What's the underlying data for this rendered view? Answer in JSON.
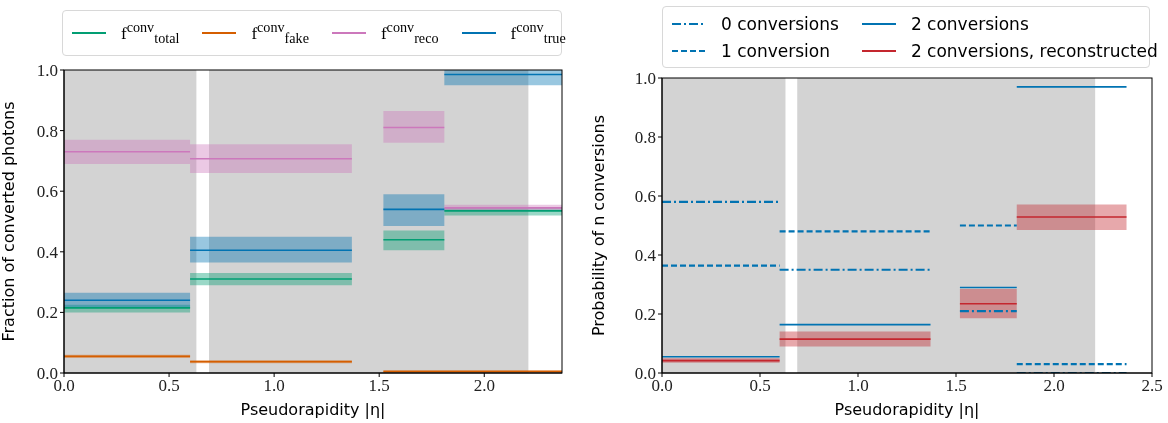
{
  "chart_data": [
    {
      "type": "line",
      "xlabel": "Pseudorapidity |η|",
      "ylabel": "Fraction of converted photons",
      "xlim": [
        0,
        2.37
      ],
      "ylim": [
        0,
        1
      ],
      "xticks": [
        {
          "value": 0,
          "label": "0.0"
        },
        {
          "value": 0.5,
          "label": "0.5"
        },
        {
          "value": 1,
          "label": "1.0"
        },
        {
          "value": 1.5,
          "label": "1.5"
        },
        {
          "value": 2,
          "label": "2.0"
        }
      ],
      "yticks": [
        {
          "value": 0,
          "label": "0.0"
        },
        {
          "value": 0.2,
          "label": "0.2"
        },
        {
          "value": 0.4,
          "label": "0.4"
        },
        {
          "value": 0.6,
          "label": "0.6"
        },
        {
          "value": 0.8,
          "label": "0.8"
        },
        {
          "value": 1,
          "label": "1.0"
        }
      ],
      "bands": [
        {
          "axis": "x",
          "from": 0,
          "to": 0.63,
          "color": "#d3d3d3"
        },
        {
          "axis": "x",
          "from": 0.69,
          "to": 2.21,
          "color": "#d3d3d3"
        }
      ],
      "legend": "top",
      "marker": "none",
      "series": [
        {
          "name": "f$^{conv}$$_{total}$",
          "color": "#029e73",
          "line_style": "solid",
          "x": [
            0,
            0.6,
            0.6,
            1.37,
            1.52,
            1.81,
            1.81,
            2.37
          ],
          "values": [
            0.215,
            0.215,
            0.31,
            0.31,
            0.44,
            0.44,
            0.535,
            0.535
          ],
          "lower": [
            0.2,
            0.2,
            0.29,
            0.29,
            0.405,
            0.405,
            0.52,
            0.52
          ],
          "upper": [
            0.225,
            0.225,
            0.33,
            0.33,
            0.47,
            0.47,
            0.545,
            0.545
          ]
        },
        {
          "name": "f$^{conv}$$_{fake}$",
          "color": "#d55e00",
          "line_style": "solid",
          "x": [
            0,
            0.6,
            0.6,
            1.37,
            1.52,
            1.81,
            1.81,
            2.37
          ],
          "values": [
            0.055,
            0.055,
            0.037,
            0.037,
            0.005,
            0.005,
            0.005,
            0.005
          ],
          "lower": [
            0.05,
            0.05,
            0.032,
            0.032,
            0,
            0,
            0,
            0
          ],
          "upper": [
            0.06,
            0.06,
            0.043,
            0.043,
            0.01,
            0.01,
            0.01,
            0.01
          ]
        },
        {
          "name": "f$^{conv}$$_{reco}$",
          "color": "#cc78bc",
          "line_style": "solid",
          "x": [
            0,
            0.6,
            0.6,
            1.37,
            1.52,
            1.81,
            1.81,
            2.37
          ],
          "values": [
            0.73,
            0.73,
            0.707,
            0.707,
            0.81,
            0.81,
            0.545,
            0.545
          ],
          "lower": [
            0.69,
            0.69,
            0.66,
            0.66,
            0.76,
            0.76,
            0.535,
            0.535
          ],
          "upper": [
            0.77,
            0.77,
            0.755,
            0.755,
            0.865,
            0.865,
            0.555,
            0.555
          ]
        },
        {
          "name": "f$^{conv}$$_{true}$",
          "color": "#0173b2",
          "line_style": "solid",
          "x": [
            0,
            0.6,
            0.6,
            1.37,
            1.52,
            1.81,
            1.81,
            2.37
          ],
          "values": [
            0.24,
            0.24,
            0.405,
            0.405,
            0.54,
            0.54,
            0.985,
            0.985
          ],
          "lower": [
            0.215,
            0.215,
            0.365,
            0.365,
            0.485,
            0.485,
            0.95,
            0.95
          ],
          "upper": [
            0.265,
            0.265,
            0.45,
            0.45,
            0.59,
            0.59,
            1,
            1
          ]
        }
      ]
    },
    {
      "type": "line",
      "xlabel": "Pseudorapidity |η|",
      "ylabel": "Probability of n conversions",
      "xlim": [
        0,
        2.5
      ],
      "ylim": [
        0,
        1
      ],
      "xticks": [
        {
          "value": 0,
          "label": "0.0"
        },
        {
          "value": 0.5,
          "label": "0.5"
        },
        {
          "value": 1,
          "label": "1.0"
        },
        {
          "value": 1.5,
          "label": "1.5"
        },
        {
          "value": 2,
          "label": "2.0"
        },
        {
          "value": 2.5,
          "label": "2.5"
        }
      ],
      "yticks": [
        {
          "value": 0,
          "label": "0.0"
        },
        {
          "value": 0.2,
          "label": "0.2"
        },
        {
          "value": 0.4,
          "label": "0.4"
        },
        {
          "value": 0.6,
          "label": "0.6"
        },
        {
          "value": 0.8,
          "label": "0.8"
        },
        {
          "value": 1,
          "label": "1.0"
        }
      ],
      "bands": [
        {
          "axis": "x",
          "from": 0,
          "to": 0.63,
          "color": "#d3d3d3"
        },
        {
          "axis": "x",
          "from": 0.69,
          "to": 2.21,
          "color": "#d3d3d3"
        }
      ],
      "legend": "top",
      "marker": "none",
      "series": [
        {
          "name": "0 conversions",
          "color": "#0173b2",
          "line_style": "dashdot",
          "x": [
            0,
            0.6,
            0.6,
            1.37,
            1.52,
            1.81,
            1.81,
            2.37
          ],
          "values": [
            0.58,
            0.58,
            0.35,
            0.35,
            0.21,
            0.21,
            0,
            0
          ]
        },
        {
          "name": "1 conversion",
          "color": "#0173b2",
          "line_style": "dashed",
          "x": [
            0,
            0.6,
            0.6,
            1.37,
            1.52,
            1.81,
            1.81,
            2.37
          ],
          "values": [
            0.364,
            0.364,
            0.48,
            0.48,
            0.5,
            0.5,
            0.03,
            0.03
          ]
        },
        {
          "name": "2 conversions",
          "color": "#0173b2",
          "line_style": "solid",
          "x": [
            0,
            0.6,
            0.6,
            1.37,
            1.52,
            1.81,
            1.81,
            2.37
          ],
          "values": [
            0.055,
            0.055,
            0.164,
            0.164,
            0.29,
            0.29,
            0.97,
            0.97
          ]
        },
        {
          "name": "2 conversions, reconstructed",
          "color": "#c4262e",
          "line_style": "solid",
          "x": [
            0,
            0.6,
            0.6,
            1.37,
            1.52,
            1.81,
            1.81,
            2.37
          ],
          "values": [
            0.042,
            0.042,
            0.115,
            0.115,
            0.235,
            0.235,
            0.529,
            0.529
          ],
          "lower": [
            0.035,
            0.035,
            0.09,
            0.09,
            0.186,
            0.186,
            0.485,
            0.485
          ],
          "upper": [
            0.05,
            0.05,
            0.141,
            0.141,
            0.285,
            0.285,
            0.571,
            0.571
          ]
        }
      ]
    }
  ]
}
